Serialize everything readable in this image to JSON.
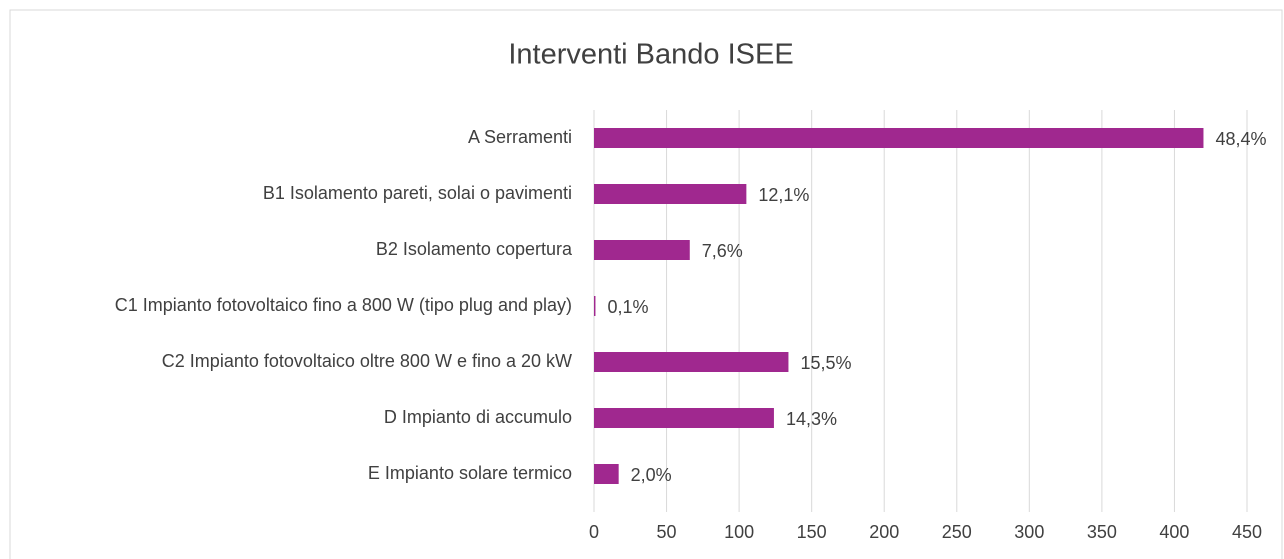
{
  "chart_data": {
    "type": "bar",
    "orientation": "horizontal",
    "title": "Interventi Bando ISEE",
    "categories": [
      "A Serramenti",
      "B1 Isolamento pareti, solai o pavimenti",
      "B2 Isolamento copertura",
      "C1 Impianto fotovoltaico fino a 800 W (tipo plug and play)",
      "C2 Impianto fotovoltaico oltre 800 W e fino a 20 kW",
      "D Impianto di accumulo",
      "E Impianto solare termico"
    ],
    "values": [
      420,
      105,
      66,
      1,
      134,
      124,
      17
    ],
    "value_labels": [
      "48,4%",
      "12,1%",
      "7,6%",
      "0,1%",
      "15,5%",
      "14,3%",
      "2,0%"
    ],
    "color": "#a0288f",
    "xlim": [
      0,
      450
    ],
    "xticks": [
      0,
      50,
      100,
      150,
      200,
      250,
      300,
      350,
      400,
      450
    ],
    "grid": true
  }
}
